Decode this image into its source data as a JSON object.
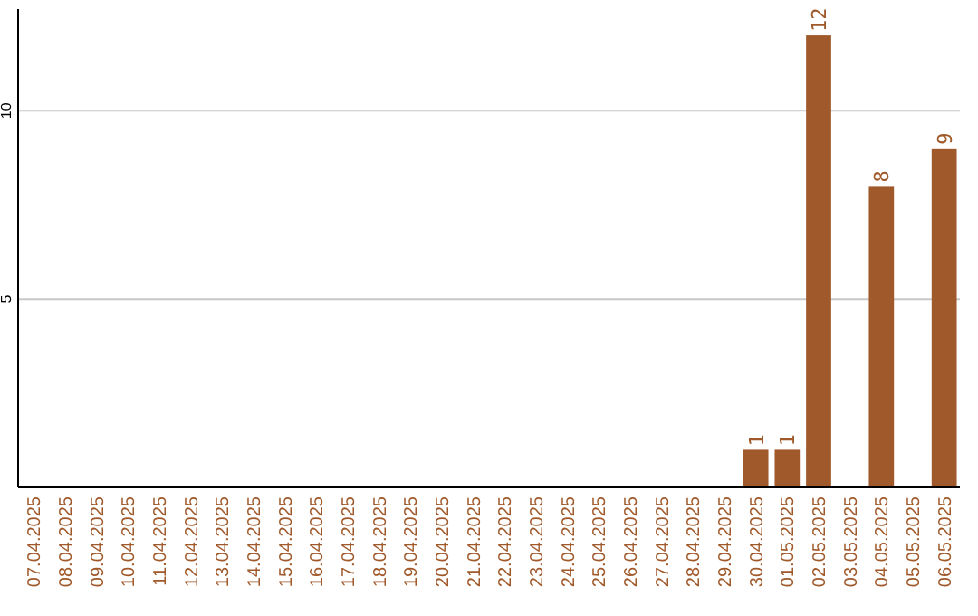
{
  "chart_data": {
    "type": "bar",
    "categories": [
      "07.04.2025",
      "08.04.2025",
      "09.04.2025",
      "10.04.2025",
      "11.04.2025",
      "12.04.2025",
      "13.04.2025",
      "14.04.2025",
      "15.04.2025",
      "16.04.2025",
      "17.04.2025",
      "18.04.2025",
      "19.04.2025",
      "20.04.2025",
      "21.04.2025",
      "22.04.2025",
      "23.04.2025",
      "24.04.2025",
      "25.04.2025",
      "26.04.2025",
      "27.04.2025",
      "28.04.2025",
      "29.04.2025",
      "30.04.2025",
      "01.05.2025",
      "02.05.2025",
      "03.05.2025",
      "04.05.2025",
      "05.05.2025",
      "06.05.2025"
    ],
    "values": [
      0,
      0,
      0,
      0,
      0,
      0,
      0,
      0,
      0,
      0,
      0,
      0,
      0,
      0,
      0,
      0,
      0,
      0,
      0,
      0,
      0,
      0,
      0,
      1,
      1,
      12,
      0,
      8,
      0,
      9
    ],
    "value_labels": [
      null,
      null,
      null,
      null,
      null,
      null,
      null,
      null,
      null,
      null,
      null,
      null,
      null,
      null,
      null,
      null,
      null,
      null,
      null,
      null,
      null,
      null,
      null,
      "1",
      "1",
      "12",
      null,
      "8",
      null,
      "9"
    ],
    "color": "#a0592a",
    "ylim": [
      0,
      12.7
    ],
    "yticks": [
      5,
      10
    ],
    "grid": "y"
  }
}
